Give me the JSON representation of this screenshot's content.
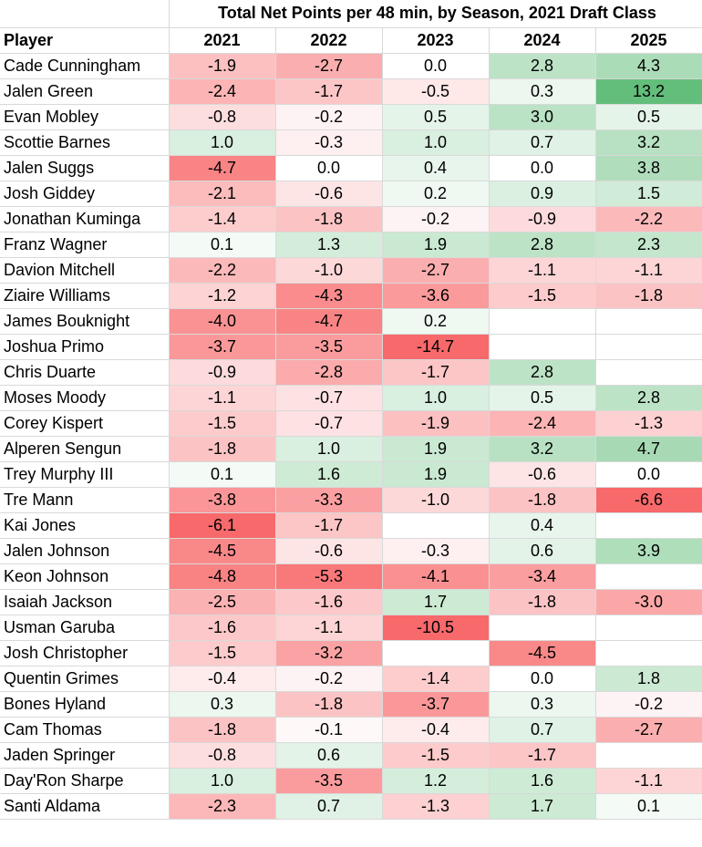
{
  "chart_data": {
    "type": "table",
    "title": "Total Net Points per 48 min, by Season, 2021 Draft Class",
    "row_header": "Player",
    "columns": [
      "2021",
      "2022",
      "2023",
      "2024",
      "2025"
    ],
    "rows": [
      {
        "player": "Cade Cunningham",
        "values": [
          -1.9,
          -2.7,
          0.0,
          2.8,
          4.3
        ]
      },
      {
        "player": "Jalen Green",
        "values": [
          -2.4,
          -1.7,
          -0.5,
          0.3,
          13.2
        ]
      },
      {
        "player": "Evan Mobley",
        "values": [
          -0.8,
          -0.2,
          0.5,
          3.0,
          0.5
        ]
      },
      {
        "player": "Scottie Barnes",
        "values": [
          1.0,
          -0.3,
          1.0,
          0.7,
          3.2
        ]
      },
      {
        "player": "Jalen Suggs",
        "values": [
          -4.7,
          0.0,
          0.4,
          0.0,
          3.8
        ]
      },
      {
        "player": "Josh Giddey",
        "values": [
          -2.1,
          -0.6,
          0.2,
          0.9,
          1.5
        ]
      },
      {
        "player": "Jonathan Kuminga",
        "values": [
          -1.4,
          -1.8,
          -0.2,
          -0.9,
          -2.2
        ]
      },
      {
        "player": "Franz Wagner",
        "values": [
          0.1,
          1.3,
          1.9,
          2.8,
          2.3
        ]
      },
      {
        "player": "Davion Mitchell",
        "values": [
          -2.2,
          -1.0,
          -2.7,
          -1.1,
          -1.1
        ]
      },
      {
        "player": "Ziaire Williams",
        "values": [
          -1.2,
          -4.3,
          -3.6,
          -1.5,
          -1.8
        ]
      },
      {
        "player": "James Bouknight",
        "values": [
          -4.0,
          -4.7,
          0.2,
          null,
          null
        ]
      },
      {
        "player": "Joshua Primo",
        "values": [
          -3.7,
          -3.5,
          -14.7,
          null,
          null
        ]
      },
      {
        "player": "Chris Duarte",
        "values": [
          -0.9,
          -2.8,
          -1.7,
          2.8,
          null
        ]
      },
      {
        "player": "Moses Moody",
        "values": [
          -1.1,
          -0.7,
          1.0,
          0.5,
          2.8
        ]
      },
      {
        "player": "Corey Kispert",
        "values": [
          -1.5,
          -0.7,
          -1.9,
          -2.4,
          -1.3
        ]
      },
      {
        "player": "Alperen Sengun",
        "values": [
          -1.8,
          1.0,
          1.9,
          3.2,
          4.7
        ]
      },
      {
        "player": "Trey Murphy III",
        "values": [
          0.1,
          1.6,
          1.9,
          -0.6,
          0.0
        ]
      },
      {
        "player": "Tre Mann",
        "values": [
          -3.8,
          -3.3,
          -1.0,
          -1.8,
          -6.6
        ]
      },
      {
        "player": "Kai Jones",
        "values": [
          -6.1,
          -1.7,
          null,
          0.4,
          null
        ]
      },
      {
        "player": "Jalen Johnson",
        "values": [
          -4.5,
          -0.6,
          -0.3,
          0.6,
          3.9
        ]
      },
      {
        "player": "Keon Johnson",
        "values": [
          -4.8,
          -5.3,
          -4.1,
          -3.4,
          null
        ]
      },
      {
        "player": "Isaiah Jackson",
        "values": [
          -2.5,
          -1.6,
          1.7,
          -1.8,
          -3.0
        ]
      },
      {
        "player": "Usman Garuba",
        "values": [
          -1.6,
          -1.1,
          -10.5,
          null,
          null
        ]
      },
      {
        "player": "Josh Christopher",
        "values": [
          -1.5,
          -3.2,
          null,
          -4.5,
          null
        ]
      },
      {
        "player": "Quentin Grimes",
        "values": [
          -0.4,
          -0.2,
          -1.4,
          0.0,
          1.8
        ]
      },
      {
        "player": "Bones Hyland",
        "values": [
          0.3,
          -1.8,
          -3.7,
          0.3,
          -0.2
        ]
      },
      {
        "player": "Cam Thomas",
        "values": [
          -1.8,
          -0.1,
          -0.4,
          0.7,
          -2.7
        ]
      },
      {
        "player": "Jaden Springer",
        "values": [
          -0.8,
          0.6,
          -1.5,
          -1.7,
          null
        ]
      },
      {
        "player": "Day'Ron Sharpe",
        "values": [
          1.0,
          -3.5,
          1.2,
          1.6,
          -1.1
        ]
      },
      {
        "player": "Santi Aldama",
        "values": [
          -2.3,
          0.7,
          -1.3,
          1.7,
          0.1
        ]
      }
    ],
    "color_scale": {
      "negative": "#f8696b",
      "neutral": "#ffffff",
      "positive": "#63be7b",
      "neg_saturation_at": -6.1,
      "pos_saturation_at": 13.2
    }
  }
}
